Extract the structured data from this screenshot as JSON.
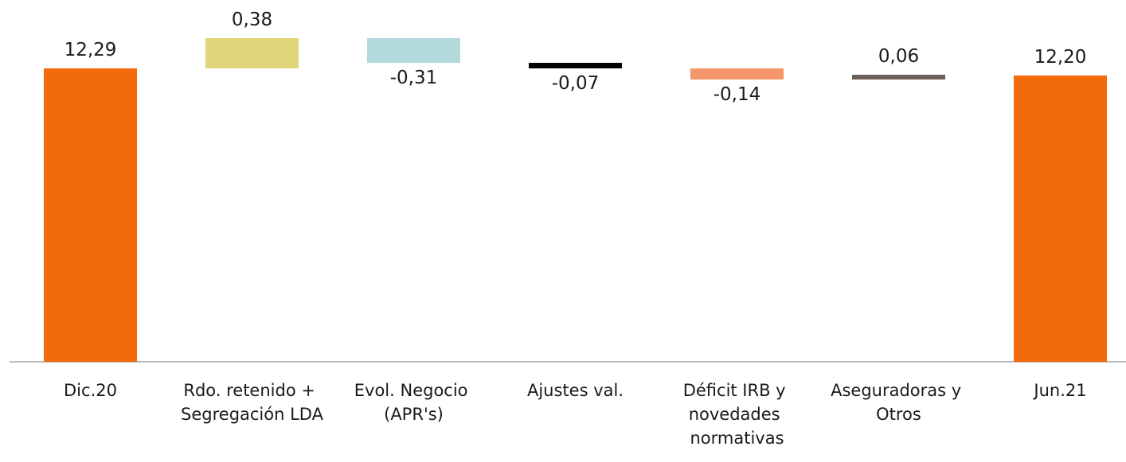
{
  "chart_data": {
    "type": "waterfall",
    "categories": [
      "Dic.20",
      "Rdo. retenido + Segregación LDA",
      "Evol. Negocio (APR's)",
      "Ajustes val.",
      "Déficit IRB y novedades normativas",
      "Aseguradoras y Otros",
      "Jun.21"
    ],
    "values": [
      12.29,
      0.38,
      -0.31,
      -0.07,
      -0.14,
      0.06,
      12.2
    ],
    "value_labels": [
      "12,29",
      "0,38",
      "-0,31",
      "-0,07",
      "-0,14",
      "0,06",
      "12,20"
    ],
    "totals": [
      true,
      false,
      false,
      false,
      false,
      false,
      true
    ],
    "colors": [
      "#f26a0a",
      "#e1d57c",
      "#b3d9dd",
      "#000000",
      "#f4956b",
      "#6b5f57",
      "#f26a0a"
    ],
    "ylim": [
      8.6,
      12.8
    ]
  }
}
